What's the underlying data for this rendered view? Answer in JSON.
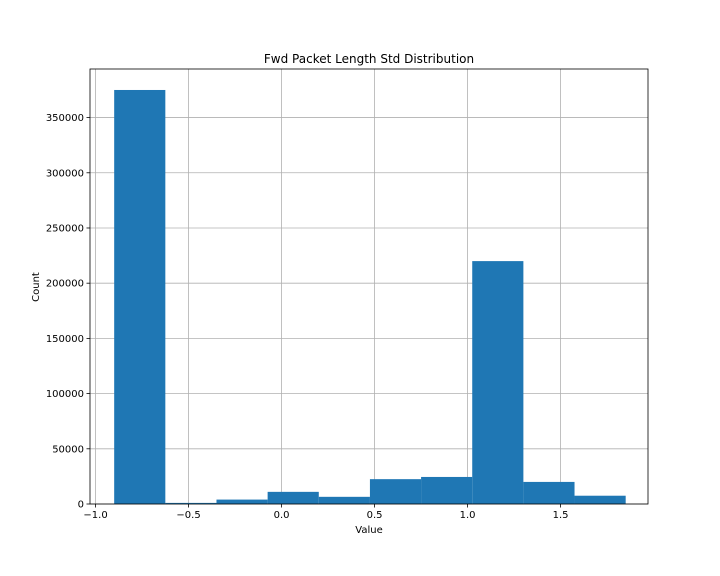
{
  "chart_data": {
    "type": "bar",
    "title": "Fwd Packet Length Std Distribution",
    "xlabel": "Value",
    "ylabel": "Count",
    "xlim": [
      -1.03,
      1.97
    ],
    "ylim": [
      0,
      394000
    ],
    "grid": true,
    "bin_edges": [
      -0.9,
      -0.625,
      -0.35,
      -0.075,
      0.2,
      0.475,
      0.75,
      1.025,
      1.3,
      1.575,
      1.85
    ],
    "values": [
      375000,
      1000,
      4000,
      11000,
      6500,
      22500,
      24500,
      220000,
      20000,
      7500
    ],
    "x_ticks": [
      -1.0,
      -0.5,
      0.0,
      0.5,
      1.0,
      1.5
    ],
    "x_tick_labels": [
      "−1.0",
      "−0.5",
      "0.0",
      "0.5",
      "1.0",
      "1.5"
    ],
    "y_ticks": [
      0,
      50000,
      100000,
      150000,
      200000,
      250000,
      300000,
      350000
    ],
    "y_tick_labels": [
      "0",
      "50000",
      "100000",
      "150000",
      "200000",
      "250000",
      "300000",
      "350000"
    ],
    "bar_color": "#1f77b4"
  }
}
